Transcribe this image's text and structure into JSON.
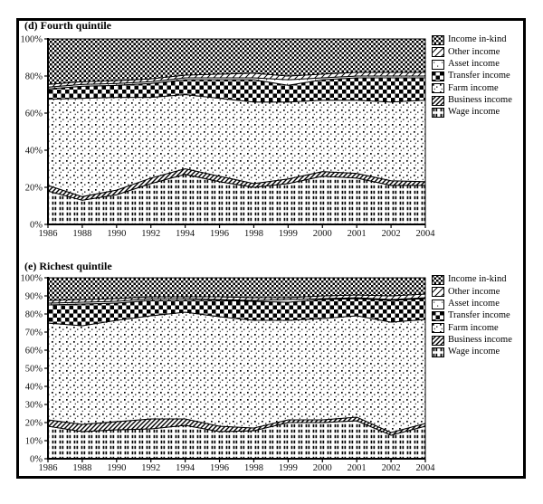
{
  "chart_data": [
    {
      "type": "area",
      "stacked": true,
      "title": "(d) Fourth quintile",
      "xlabel": "",
      "ylabel": "",
      "ylim": [
        0,
        100
      ],
      "grid": false,
      "legend_position": "right",
      "categories": [
        "1986",
        "1988",
        "1990",
        "1992",
        "1994",
        "1996",
        "1998",
        "1999",
        "2000",
        "2001",
        "2002",
        "2004"
      ],
      "ytick_labels": [
        "0%",
        "20%",
        "40%",
        "60%",
        "80%",
        "100%"
      ],
      "series": [
        {
          "name": "Wage income",
          "pattern": "vertical-dash-columns",
          "values": [
            18,
            13,
            16,
            22,
            27,
            23,
            20,
            22,
            26,
            25,
            21,
            21
          ]
        },
        {
          "name": "Business income",
          "pattern": "diagonal-hatch",
          "values": [
            3,
            2,
            2.5,
            3,
            3,
            3,
            2,
            2.5,
            2.5,
            2.5,
            2.5,
            2
          ]
        },
        {
          "name": "Farm income",
          "pattern": "dot-stipple",
          "values": [
            46.5,
            53,
            50,
            43.5,
            40,
            42,
            44,
            41.5,
            38.5,
            39.5,
            42.5,
            44
          ]
        },
        {
          "name": "Transfer income",
          "pattern": "checkerboard",
          "values": [
            5.5,
            6.5,
            6.5,
            7.5,
            8,
            10,
            12,
            9,
            11,
            12,
            13,
            12
          ]
        },
        {
          "name": "Asset income",
          "pattern": "sparse-dot",
          "values": [
            1,
            1,
            1,
            1,
            1,
            1,
            1,
            3,
            1,
            1,
            1,
            1
          ]
        },
        {
          "name": "Other income",
          "pattern": "light-diagonal-hatch",
          "values": [
            1.5,
            1.5,
            1.5,
            1.5,
            1.5,
            2,
            2.5,
            2,
            2,
            2,
            2,
            2
          ]
        },
        {
          "name": "Income in-kind",
          "pattern": "dense-stipple",
          "values": [
            24.5,
            23,
            22.5,
            21.5,
            19.5,
            19,
            18.5,
            20,
            19,
            18,
            18,
            18
          ]
        }
      ]
    },
    {
      "type": "area",
      "stacked": true,
      "title": "(e) Richest quintile",
      "xlabel": "",
      "ylabel": "",
      "ylim": [
        0,
        100
      ],
      "grid": false,
      "legend_position": "right",
      "categories": [
        "1986",
        "1988",
        "1990",
        "1992",
        "1994",
        "1996",
        "1998",
        "1999",
        "2000",
        "2001",
        "2002",
        "2004"
      ],
      "ytick_labels": [
        "0%",
        "10%",
        "20%",
        "30%",
        "40%",
        "50%",
        "60%",
        "70%",
        "80%",
        "90%",
        "100%"
      ],
      "series": [
        {
          "name": "Wage income",
          "pattern": "vertical-dash-columns",
          "values": [
            18,
            15,
            16,
            16.5,
            18.5,
            15,
            15.5,
            20,
            20,
            21,
            13,
            18
          ]
        },
        {
          "name": "Business income",
          "pattern": "diagonal-hatch",
          "values": [
            3.5,
            4,
            4.5,
            5.5,
            3.5,
            3,
            1.5,
            1.5,
            1.5,
            2,
            1.5,
            1.5
          ]
        },
        {
          "name": "Farm income",
          "pattern": "dot-stipple",
          "values": [
            53.5,
            54.5,
            56,
            57,
            59,
            60.5,
            59.5,
            55,
            56,
            56,
            61,
            57.5
          ]
        },
        {
          "name": "Transfer income",
          "pattern": "checkerboard",
          "values": [
            10,
            12,
            9.5,
            8.5,
            6.5,
            9,
            10.5,
            10,
            10.5,
            9.5,
            12,
            11.5
          ]
        },
        {
          "name": "Asset income",
          "pattern": "sparse-dot",
          "values": [
            1,
            1,
            1,
            1,
            1,
            0.5,
            0.5,
            1.5,
            0.5,
            0.5,
            0.5,
            0.5
          ]
        },
        {
          "name": "Other income",
          "pattern": "light-diagonal-hatch",
          "values": [
            1.5,
            1.5,
            1.5,
            1,
            1,
            1.5,
            1.5,
            1,
            1.5,
            1.5,
            2,
            2
          ]
        },
        {
          "name": "Income in-kind",
          "pattern": "dense-stipple",
          "values": [
            12.5,
            12,
            11.5,
            10.5,
            10.5,
            10.5,
            11,
            11,
            10,
            9.5,
            10,
            9
          ]
        }
      ]
    }
  ]
}
